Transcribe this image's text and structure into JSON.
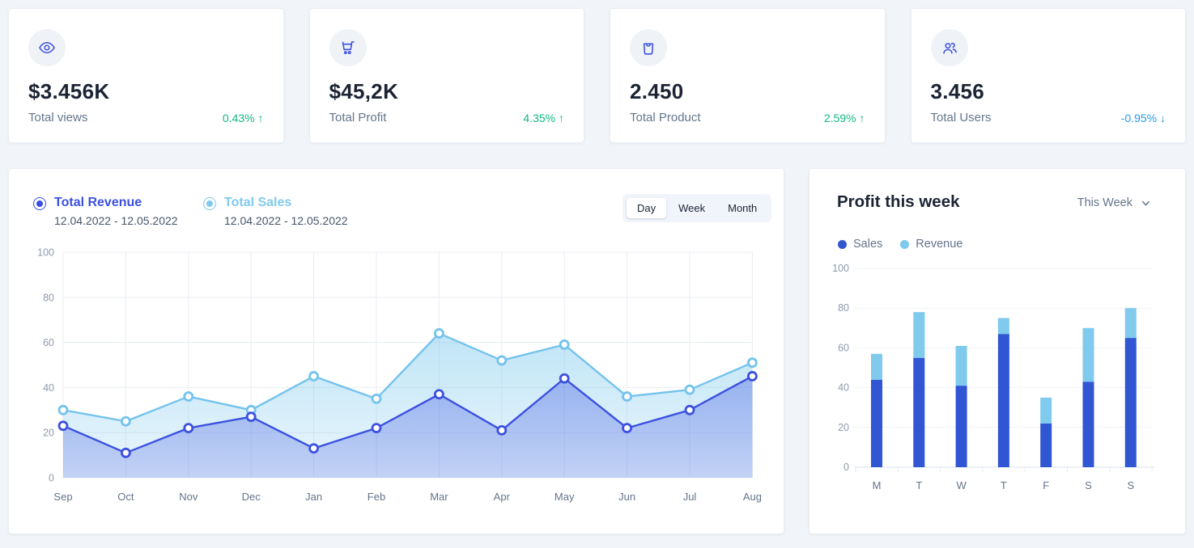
{
  "page": {
    "background": "#F1F5F9"
  },
  "stat_cards": [
    {
      "icon": "eye-icon",
      "value": "$3.456K",
      "label": "Total views",
      "delta": "0.43% ↑",
      "delta_color": "#10B981"
    },
    {
      "icon": "shopping-cart-icon",
      "value": "$45,2K",
      "label": "Total Profit",
      "delta": "4.35% ↑",
      "delta_color": "#10B981"
    },
    {
      "icon": "shopping-bag-icon",
      "value": "2.450",
      "label": "Total Product",
      "delta": "2.59% ↑",
      "delta_color": "#10B981"
    },
    {
      "icon": "users-icon",
      "value": "3.456",
      "label": "Total Users",
      "delta": "-0.95% ↓",
      "delta_color": "#259AE6"
    }
  ],
  "revenue_panel": {
    "legend": [
      {
        "label": "Total Revenue",
        "date_range": "12.04.2022 - 12.05.2022",
        "color": "#3C50E0"
      },
      {
        "label": "Total Sales",
        "date_range": "12.04.2022 - 12.05.2022",
        "color": "#80CAEE"
      }
    ],
    "range_toggle": {
      "options": [
        "Day",
        "Week",
        "Month"
      ],
      "active": "Day"
    }
  },
  "profit_panel": {
    "title": "Profit this week",
    "period_select": "This Week",
    "legend": [
      {
        "label": "Sales",
        "color": "#3056D3"
      },
      {
        "label": "Revenue",
        "color": "#80CAEE"
      }
    ]
  },
  "chart_data": [
    {
      "type": "area",
      "panel": "revenue-sales",
      "x": [
        "Sep",
        "Oct",
        "Nov",
        "Dec",
        "Jan",
        "Feb",
        "Mar",
        "Apr",
        "May",
        "Jun",
        "Jul",
        "Aug"
      ],
      "series": [
        {
          "name": "Total Revenue",
          "color": "#3C50E0",
          "values": [
            23,
            11,
            22,
            27,
            13,
            22,
            37,
            21,
            44,
            22,
            30,
            45
          ]
        },
        {
          "name": "Total Sales",
          "color": "#80CAEE",
          "values": [
            30,
            25,
            36,
            30,
            45,
            35,
            64,
            52,
            59,
            36,
            39,
            51
          ]
        }
      ],
      "ylim": [
        0,
        100
      ],
      "yticks": [
        0,
        20,
        40,
        60,
        80,
        100
      ],
      "grid": true,
      "legend_position": "top-left",
      "marker_style": "white-filled-ring"
    },
    {
      "type": "bar",
      "stacked": true,
      "panel": "profit-this-week",
      "title": "Profit this week",
      "categories": [
        "M",
        "T",
        "W",
        "T",
        "F",
        "S",
        "S"
      ],
      "series": [
        {
          "name": "Sales",
          "color": "#3056D3",
          "values": [
            44,
            55,
            41,
            67,
            22,
            43,
            65
          ]
        },
        {
          "name": "Revenue",
          "color": "#80CAEE",
          "values": [
            13,
            23,
            20,
            8,
            13,
            27,
            15
          ]
        }
      ],
      "ylim": [
        0,
        100
      ],
      "yticks": [
        0,
        20,
        40,
        60,
        80,
        100
      ],
      "grid": true,
      "legend_position": "top-left"
    }
  ]
}
